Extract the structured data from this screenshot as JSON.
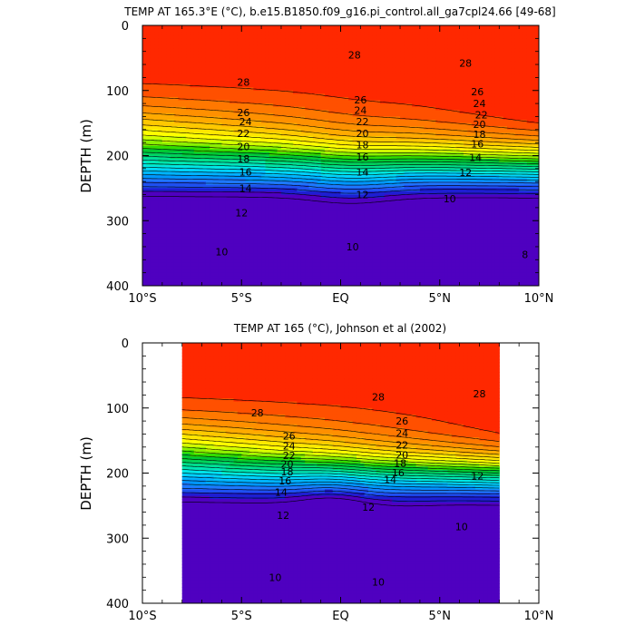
{
  "chart_data": [
    {
      "type": "contour",
      "title": "TEMP AT 165.3°E (°C), b.e15.B1850.f09_g16.pi_control.all_ga7cpl24.66 [49-68]",
      "ylabel": "DEPTH (m)",
      "xlim": [
        -10,
        10
      ],
      "ylim": [
        400,
        0
      ],
      "x_ticks": [
        "10°S",
        "5°S",
        "EQ",
        "5°N",
        "10°N"
      ],
      "y_ticks": [
        "0",
        "100",
        "200",
        "300",
        "400"
      ],
      "contour_interval": 1,
      "contour_labels": [
        {
          "value": "28",
          "x": -4.9,
          "y": 87
        },
        {
          "value": "28",
          "x": 0.7,
          "y": 45
        },
        {
          "value": "28",
          "x": 6.3,
          "y": 58
        },
        {
          "value": "26",
          "x": -4.9,
          "y": 134
        },
        {
          "value": "26",
          "x": 1.0,
          "y": 114
        },
        {
          "value": "26",
          "x": 6.9,
          "y": 102
        },
        {
          "value": "24",
          "x": -4.8,
          "y": 148
        },
        {
          "value": "24",
          "x": 1.0,
          "y": 130
        },
        {
          "value": "24",
          "x": 7.0,
          "y": 120
        },
        {
          "value": "22",
          "x": -4.9,
          "y": 166
        },
        {
          "value": "22",
          "x": 1.1,
          "y": 148
        },
        {
          "value": "22",
          "x": 7.1,
          "y": 137
        },
        {
          "value": "20",
          "x": -4.9,
          "y": 186
        },
        {
          "value": "20",
          "x": 1.1,
          "y": 166
        },
        {
          "value": "20",
          "x": 7.0,
          "y": 152
        },
        {
          "value": "18",
          "x": -4.9,
          "y": 205
        },
        {
          "value": "18",
          "x": 1.1,
          "y": 183
        },
        {
          "value": "18",
          "x": 7.0,
          "y": 167
        },
        {
          "value": "16",
          "x": -4.8,
          "y": 225
        },
        {
          "value": "16",
          "x": 1.1,
          "y": 202
        },
        {
          "value": "16",
          "x": 6.9,
          "y": 182
        },
        {
          "value": "14",
          "x": -4.8,
          "y": 250
        },
        {
          "value": "14",
          "x": 1.1,
          "y": 225
        },
        {
          "value": "14",
          "x": 6.8,
          "y": 203
        },
        {
          "value": "12",
          "x": -5.0,
          "y": 288
        },
        {
          "value": "12",
          "x": 1.1,
          "y": 260
        },
        {
          "value": "12",
          "x": 6.3,
          "y": 226
        },
        {
          "value": "10",
          "x": -6.0,
          "y": 348
        },
        {
          "value": "10",
          "x": 0.6,
          "y": 340
        },
        {
          "value": "10",
          "x": 5.5,
          "y": 266
        },
        {
          "value": "8",
          "x": 9.3,
          "y": 352
        }
      ]
    },
    {
      "type": "contour",
      "title": "TEMP AT 165 (°C), Johnson et al (2002)",
      "ylabel": "DEPTH (m)",
      "xlim": [
        -10,
        10
      ],
      "ylim": [
        400,
        0
      ],
      "data_xrange": [
        -8,
        8
      ],
      "x_ticks": [
        "10°S",
        "5°S",
        "EQ",
        "5°N",
        "10°N"
      ],
      "y_ticks": [
        "0",
        "100",
        "200",
        "300",
        "400"
      ],
      "contour_interval": 1,
      "contour_labels": [
        {
          "value": "28",
          "x": -4.2,
          "y": 107
        },
        {
          "value": "28",
          "x": 1.9,
          "y": 83
        },
        {
          "value": "28",
          "x": 7.0,
          "y": 78
        },
        {
          "value": "26",
          "x": -2.6,
          "y": 143
        },
        {
          "value": "26",
          "x": 3.1,
          "y": 120
        },
        {
          "value": "24",
          "x": -2.6,
          "y": 158
        },
        {
          "value": "24",
          "x": 3.1,
          "y": 139
        },
        {
          "value": "22",
          "x": -2.6,
          "y": 173
        },
        {
          "value": "22",
          "x": 3.1,
          "y": 157
        },
        {
          "value": "20",
          "x": -2.7,
          "y": 186
        },
        {
          "value": "20",
          "x": 3.1,
          "y": 172
        },
        {
          "value": "18",
          "x": -2.7,
          "y": 198
        },
        {
          "value": "18",
          "x": 3.0,
          "y": 185
        },
        {
          "value": "16",
          "x": -2.8,
          "y": 212
        },
        {
          "value": "16",
          "x": 2.9,
          "y": 199
        },
        {
          "value": "14",
          "x": -3.0,
          "y": 229
        },
        {
          "value": "14",
          "x": 2.5,
          "y": 210
        },
        {
          "value": "12",
          "x": -2.9,
          "y": 265
        },
        {
          "value": "12",
          "x": 1.4,
          "y": 252
        },
        {
          "value": "12",
          "x": 6.9,
          "y": 204
        },
        {
          "value": "10",
          "x": -3.3,
          "y": 360
        },
        {
          "value": "10",
          "x": 1.9,
          "y": 367
        },
        {
          "value": "10",
          "x": 6.1,
          "y": 282
        }
      ]
    }
  ],
  "colors": {
    "scale": [
      "#4f00c0",
      "#1e1ed2",
      "#1e50f0",
      "#1e78ff",
      "#0096ff",
      "#00b4ff",
      "#00d2ff",
      "#00e6e6",
      "#00e6b4",
      "#00dc8c",
      "#00d25a",
      "#00c832",
      "#32dc00",
      "#8cf000",
      "#d2ff00",
      "#ffff00",
      "#ffe600",
      "#ffc800",
      "#ffaa00",
      "#ff9000",
      "#ff7800",
      "#ff5000",
      "#ff2800",
      "#ff0000",
      "#d20000"
    ]
  }
}
